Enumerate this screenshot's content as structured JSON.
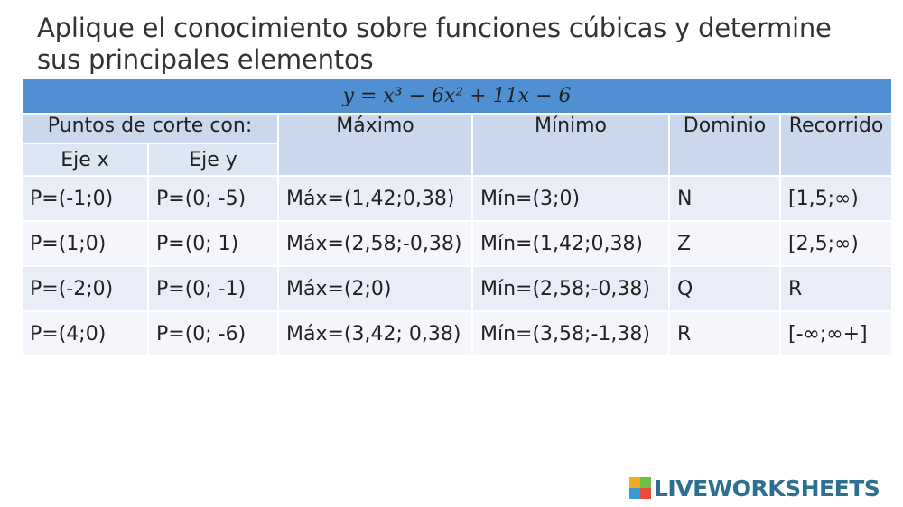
{
  "instructions": {
    "line1": "Aplique el conocimiento sobre funciones cúbicas y determine",
    "line2": "sus principales elementos"
  },
  "table": {
    "equation": "y = x³ − 6x² + 11x − 6",
    "headers": {
      "cuts": "Puntos de corte con:",
      "axis_x": "Eje x",
      "axis_y": "Eje y",
      "max": "Máximo",
      "min": "Mínimo",
      "domain": "Dominio",
      "range": "Recorrido"
    },
    "rows": [
      {
        "x": "P=(-1;0)",
        "y": "P=(0; -5)",
        "max": "Máx=(1,42;0,38)",
        "min": "Mín=(3;0)",
        "domain": "N",
        "range": "[1,5;∞)"
      },
      {
        "x": "P=(1;0)",
        "y": "P=(0; 1)",
        "max": "Máx=(2,58;-0,38)",
        "min": "Mín=(1,42;0,38)",
        "domain": "Z",
        "range": "[2,5;∞)"
      },
      {
        "x": "P=(-2;0)",
        "y": "P=(0; -1)",
        "max": "Máx=(2;0)",
        "min": "Mín=(2,58;-0,38)",
        "domain": "Q",
        "range": "R"
      },
      {
        "x": "P=(4;0)",
        "y": "P=(0; -6)",
        "max": "Máx=(3,42; 0,38)",
        "min": "Mín=(3,58;-1,38)",
        "domain": "R",
        "range": "[-∞;∞+]"
      }
    ]
  },
  "logo": {
    "text": "LIVEWORKSHEETS",
    "colors": [
      "#f5a623",
      "#6cbf4a",
      "#3a9ad9",
      "#e84c3d"
    ]
  }
}
